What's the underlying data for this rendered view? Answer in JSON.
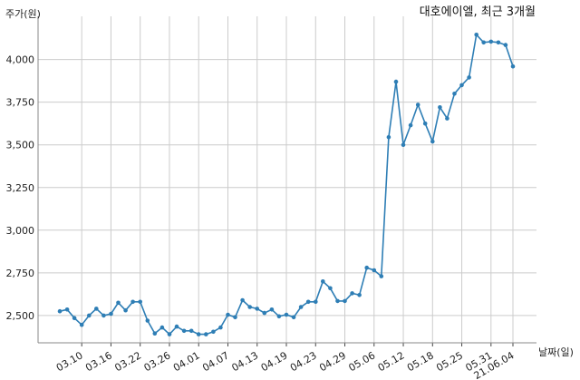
{
  "chart_data": {
    "type": "line",
    "title": "대호에이엘, 최근 3개월",
    "ylabel": "주가(원)",
    "xlabel": "날짜(일)",
    "ylim": [
      2340,
      4200
    ],
    "yticks": [
      2500,
      2750,
      3000,
      3250,
      3500,
      3750,
      4000
    ],
    "ytick_labels": [
      "2,500",
      "2,750",
      "3,000",
      "3,250",
      "3,500",
      "3,750",
      "4,000"
    ],
    "xtick_labels": [
      "03.10",
      "03.16",
      "03.22",
      "03.26",
      "04.01",
      "04.07",
      "04.13",
      "04.19",
      "04.23",
      "04.29",
      "05.06",
      "05.12",
      "05.18",
      "05.25",
      "05.31",
      "21.06.04"
    ],
    "xtick_index": [
      3,
      7,
      11,
      15,
      19,
      23,
      27,
      31,
      35,
      39,
      43,
      47,
      51,
      55,
      59,
      62
    ],
    "grid": true,
    "color": "#2e7eb5",
    "series": [
      {
        "values": [
          2525,
          2535,
          2485,
          2445,
          2500,
          2540,
          2500,
          2510,
          2575,
          2530,
          2580,
          2580,
          2470,
          2395,
          2430,
          2390,
          2435,
          2410,
          2410,
          2390,
          2390,
          2405,
          2430,
          2505,
          2490,
          2590,
          2550,
          2540,
          2515,
          2535,
          2495,
          2505,
          2490,
          2550,
          2580,
          2580,
          2700,
          2660,
          2585,
          2585,
          2630,
          2620,
          2780,
          2765,
          2730,
          3545,
          3870,
          3500,
          3615,
          3735,
          3625,
          3520,
          3720,
          3655,
          3800,
          3850,
          3895,
          4145,
          4100,
          4105,
          4100,
          4085,
          3960
        ]
      }
    ]
  }
}
